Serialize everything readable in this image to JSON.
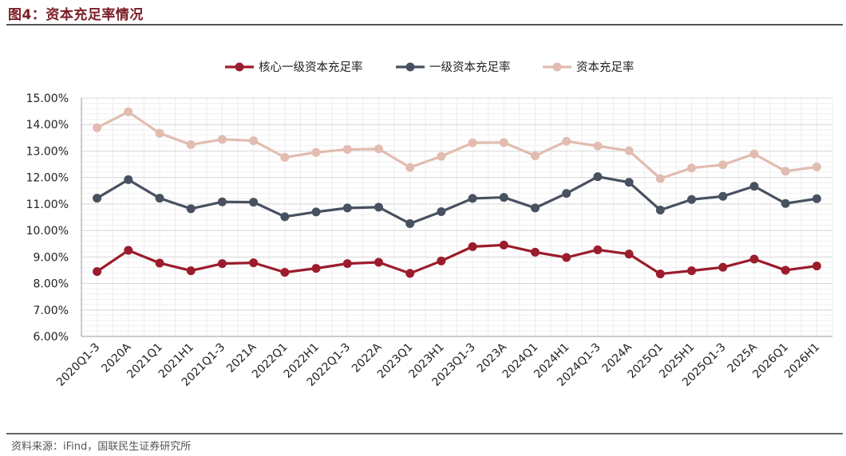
{
  "figure": {
    "title": "图4：资本充足率情况",
    "source": "资料来源：iFind，国联民生证券研究所"
  },
  "chart_data": {
    "type": "line",
    "title": "",
    "xlabel": "",
    "ylabel": "",
    "categories": [
      "2020Q1-3",
      "2020A",
      "2021Q1",
      "2021H1",
      "2021Q1-3",
      "2021A",
      "2022Q1",
      "2022H1",
      "2022Q1-3",
      "2022A",
      "2023Q1",
      "2023H1",
      "2023Q1-3",
      "2023A",
      "2024Q1",
      "2024H1",
      "2024Q1-3",
      "2024A",
      "2025Q1",
      "2025H1",
      "2025Q1-3",
      "2025A",
      "2026Q1",
      "2026H1"
    ],
    "ylim": [
      6,
      15
    ],
    "ytick_step": 1,
    "y_format": "percent_2dp",
    "grid": true,
    "legend_position": "top-center",
    "series": [
      {
        "name": "核心一级资本充足率",
        "color": "#9b1c2c",
        "values": [
          8.45,
          9.25,
          8.77,
          8.48,
          8.75,
          8.78,
          8.42,
          8.57,
          8.75,
          8.8,
          8.38,
          8.85,
          9.39,
          9.45,
          9.18,
          8.98,
          9.27,
          9.11,
          8.36,
          8.48,
          8.61,
          8.92,
          8.5,
          8.66
        ]
      },
      {
        "name": "一级资本充足率",
        "color": "#485160",
        "values": [
          11.22,
          11.92,
          11.22,
          10.82,
          11.08,
          11.07,
          10.52,
          10.7,
          10.85,
          10.88,
          10.26,
          10.71,
          11.21,
          11.25,
          10.85,
          11.4,
          12.03,
          11.82,
          10.77,
          11.17,
          11.29,
          11.67,
          11.02,
          11.2
        ]
      },
      {
        "name": "资本充足率",
        "color": "#e2bcb0",
        "values": [
          13.88,
          14.48,
          13.67,
          13.24,
          13.44,
          13.39,
          12.76,
          12.95,
          13.06,
          13.08,
          12.38,
          12.8,
          13.31,
          13.32,
          12.82,
          13.37,
          13.19,
          13.01,
          11.96,
          12.36,
          12.48,
          12.89,
          12.24,
          12.4
        ]
      }
    ]
  }
}
